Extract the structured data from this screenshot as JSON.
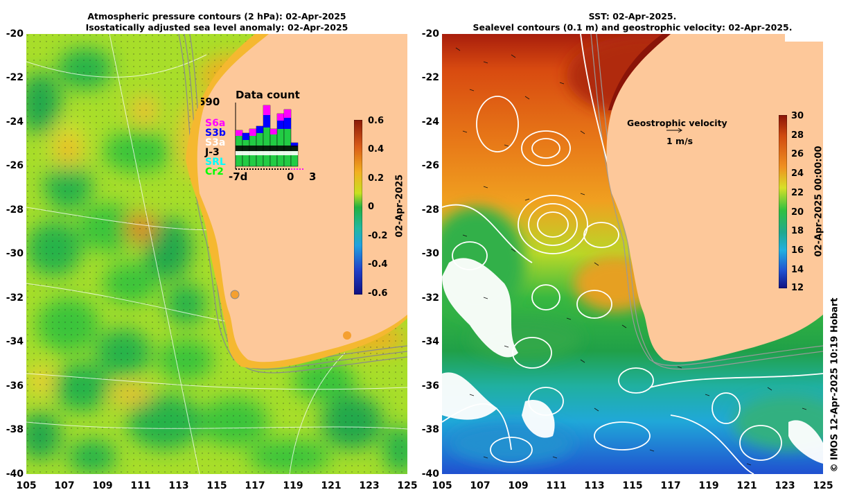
{
  "left_panel": {
    "title_line1": "Atmospheric pressure contours (2 hPa): 02-Apr-2025",
    "title_line2": "Isostatically adjusted sea level anomaly: 02-Apr-2025",
    "colorbar_label": "02-Apr-2025",
    "colorbar_ticks": [
      "0.6",
      "0.4",
      "0.2",
      "0",
      "-0.2",
      "-0.4",
      "-0.6"
    ],
    "colorbar_range": [
      -0.6,
      0.6
    ],
    "inset": {
      "title": "Data count",
      "max_label": "590",
      "x_labels": [
        "-7d",
        "0",
        "3"
      ],
      "legend": [
        {
          "name": "S6a",
          "color": "#ff00ff"
        },
        {
          "name": "S3b",
          "color": "#0000ff"
        },
        {
          "name": "S3a",
          "color": "#ffffff"
        },
        {
          "name": "J-3",
          "color": "#000000"
        },
        {
          "name": "SRL",
          "color": "#00ffff"
        },
        {
          "name": "Cr2",
          "color": "#00ff00"
        }
      ]
    }
  },
  "right_panel": {
    "title_line1": "SST: 02-Apr-2025.",
    "title_line2": "Sealevel contours (0.1 m) and geostrophic velocity: 02-Apr-2025.",
    "colorbar_label": "02-Apr-2025 00:00:00",
    "colorbar_ticks": [
      "30",
      "28",
      "26",
      "24",
      "22",
      "20",
      "18",
      "16",
      "14",
      "12"
    ],
    "colorbar_range": [
      12,
      30
    ],
    "velocity_legend_title": "Geostrophic velocity",
    "velocity_legend_scale": "1 m/s"
  },
  "axes": {
    "lat_ticks": [
      "-20",
      "-22",
      "-24",
      "-26",
      "-28",
      "-30",
      "-32",
      "-34",
      "-36",
      "-38",
      "-40"
    ],
    "lon_ticks": [
      "105",
      "107",
      "109",
      "111",
      "113",
      "115",
      "117",
      "119",
      "121",
      "123",
      "125"
    ],
    "lat_range": [
      -40,
      -20
    ],
    "lon_range": [
      105,
      125
    ]
  },
  "credit": "© IMOS 12-Apr-2025 10:19 Hobart",
  "colors": {
    "land": "#fdc89a",
    "ssl_neutral": "#3fcf3a",
    "ssl_high": "#f0b020",
    "sst_warm": "#c03010",
    "sst_cool": "#2060e0"
  }
}
